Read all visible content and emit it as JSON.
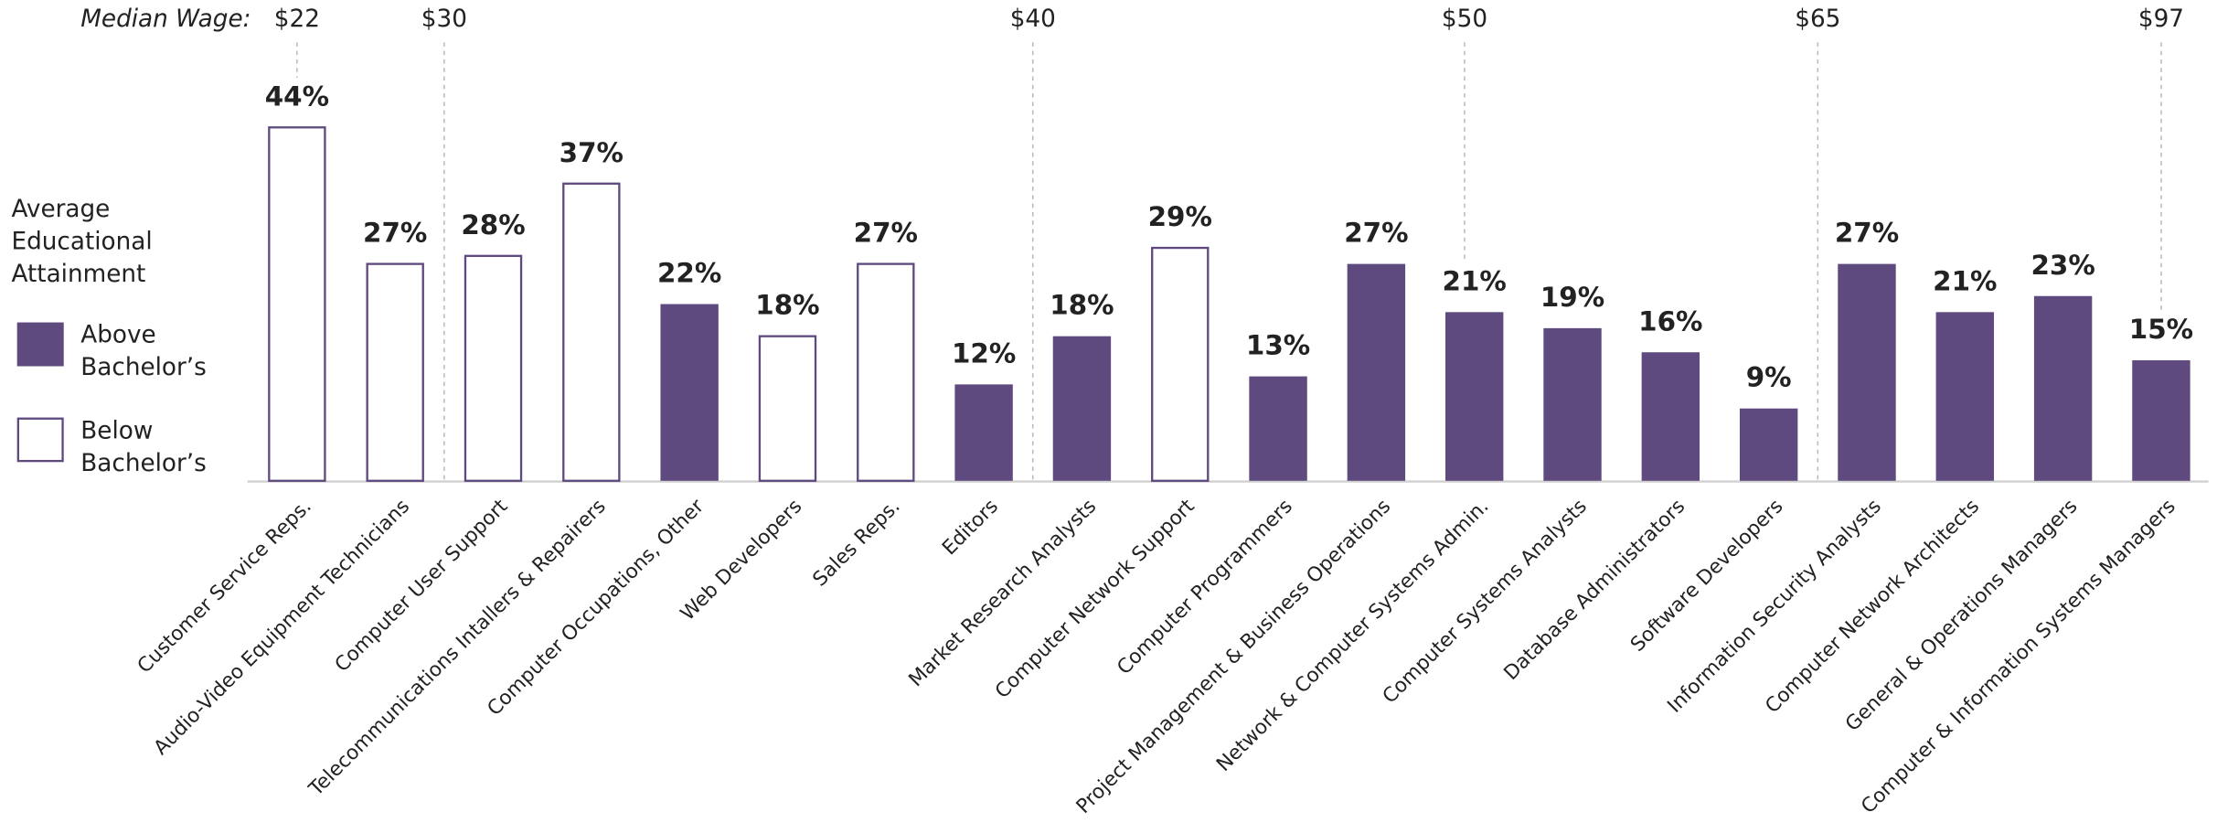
{
  "chart_data": {
    "type": "bar",
    "legend_title": "Average Educational Attainment",
    "annotation_title": "Median Wage:",
    "categories": [
      "Customer Service Reps.",
      "Audio-Video Equipment Technicians",
      "Computer User Support",
      "Telecommunications Intallers & Repairers",
      "Computer Occupations, Other",
      "Web Developers",
      "Sales Reps.",
      "Editors",
      "Market Research Analysts",
      "Computer Network Support",
      "Computer Programmers",
      "Project Management & Business Operations",
      "Network & Computer Systems Admin.",
      "Computer Systems Analysts",
      "Database Administrators",
      "Software Developers",
      "Information Security Analysts",
      "Computer Network Architects",
      "General & Operations Managers",
      "Computer & Information Systems Managers"
    ],
    "series": [
      {
        "name": "Above Bachelor’s",
        "color": "#5e4a7e",
        "style": "solid",
        "values": [
          null,
          null,
          null,
          null,
          22,
          null,
          null,
          12,
          18,
          null,
          13,
          27,
          21,
          19,
          16,
          9,
          27,
          21,
          23,
          15
        ],
        "value_labels": [
          null,
          null,
          null,
          null,
          "22%",
          null,
          null,
          "12%",
          "18%",
          null,
          "13%",
          "27%",
          "21%",
          "19%",
          "16%",
          "9%",
          "27%",
          "21%",
          "23%",
          "15%"
        ]
      },
      {
        "name": "Below Bachelor’s",
        "color": "#5e4a7e",
        "style": "outline",
        "values": [
          44,
          27,
          28,
          37,
          null,
          18,
          27,
          null,
          null,
          29,
          null,
          null,
          null,
          null,
          null,
          null,
          null,
          null,
          null,
          null
        ],
        "value_labels": [
          "44%",
          "27%",
          "28%",
          "37%",
          null,
          "18%",
          "27%",
          null,
          null,
          "29%",
          null,
          null,
          null,
          null,
          null,
          null,
          null,
          null,
          null,
          null
        ]
      }
    ],
    "ylim": [
      0,
      50
    ],
    "wage_markers": [
      {
        "label": "$22",
        "x": 0
      },
      {
        "label": "$30",
        "x": 1.5
      },
      {
        "label": "$40",
        "x": 7.5
      },
      {
        "label": "$50",
        "x": 11.9
      },
      {
        "label": "$65",
        "x": 15.5
      },
      {
        "label": "$97",
        "x": 19
      }
    ]
  }
}
